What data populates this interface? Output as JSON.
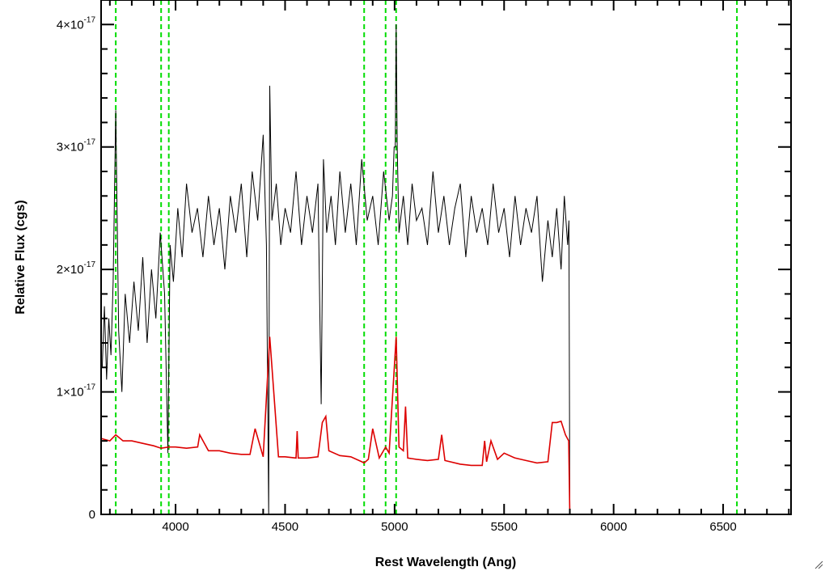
{
  "chart_data": {
    "type": "line",
    "xlabel": "Rest Wavelength (Ang)",
    "ylabel": "Relative Flux (cgs)",
    "xlim": [
      3660,
      6810
    ],
    "ylim": [
      0,
      4.2e-17
    ],
    "x_ticks": [
      {
        "value": 4000,
        "label": "4000"
      },
      {
        "value": 4500,
        "label": "4500"
      },
      {
        "value": 5000,
        "label": "5000"
      },
      {
        "value": 5500,
        "label": "5500"
      },
      {
        "value": 6000,
        "label": "6000"
      },
      {
        "value": 6500,
        "label": "6500"
      }
    ],
    "y_ticks": [
      {
        "value": 0,
        "label": "0"
      },
      {
        "value": 1e-17,
        "label": "1×10",
        "exp": "-17"
      },
      {
        "value": 2e-17,
        "label": "2×10",
        "exp": "-17"
      },
      {
        "value": 3e-17,
        "label": "3×10",
        "exp": "-17"
      },
      {
        "value": 4e-17,
        "label": "4×10",
        "exp": "-17"
      }
    ],
    "grid": false,
    "reference_lines": {
      "color": "#00dd00",
      "style": "dashed",
      "x": [
        3727,
        3934,
        3969,
        4861,
        4959,
        5007,
        6563
      ]
    },
    "series": [
      {
        "color": "#000000",
        "x": [
          3665,
          3675,
          3685,
          3695,
          3705,
          3715,
          3727,
          3740,
          3755,
          3770,
          3790,
          3810,
          3830,
          3850,
          3870,
          3890,
          3910,
          3930,
          3950,
          3965,
          3975,
          3990,
          4010,
          4030,
          4050,
          4075,
          4100,
          4125,
          4150,
          4175,
          4200,
          4225,
          4250,
          4275,
          4300,
          4325,
          4350,
          4375,
          4400,
          4415,
          4425,
          4430,
          4440,
          4460,
          4480,
          4500,
          4525,
          4550,
          4575,
          4600,
          4625,
          4650,
          4665,
          4675,
          4690,
          4710,
          4730,
          4750,
          4775,
          4800,
          4825,
          4850,
          4875,
          4900,
          4925,
          4950,
          4975,
          4990,
          4998,
          5003,
          5007,
          5012,
          5020,
          5040,
          5060,
          5080,
          5100,
          5125,
          5150,
          5175,
          5200,
          5225,
          5250,
          5275,
          5300,
          5325,
          5350,
          5375,
          5400,
          5425,
          5450,
          5475,
          5500,
          5525,
          5550,
          5575,
          5600,
          5625,
          5650,
          5675,
          5700,
          5720,
          5740,
          5760,
          5775,
          5790,
          5796,
          5800
        ],
        "y": [
          1.2e-17,
          1.7e-17,
          1.1e-17,
          1.6e-17,
          1.3e-17,
          1.9e-17,
          3.3e-17,
          1.5e-17,
          1e-17,
          1.8e-17,
          1.4e-17,
          1.9e-17,
          1.5e-17,
          2.1e-17,
          1.4e-17,
          2e-17,
          1.6e-17,
          2.3e-17,
          1.8e-17,
          5e-18,
          2.2e-17,
          1.9e-17,
          2.5e-17,
          2.1e-17,
          2.7e-17,
          2.3e-17,
          2.5e-17,
          2.1e-17,
          2.6e-17,
          2.2e-17,
          2.5e-17,
          2e-17,
          2.6e-17,
          2.3e-17,
          2.7e-17,
          2.1e-17,
          2.8e-17,
          2.4e-17,
          3.1e-17,
          2.2e-17,
          0.0,
          3.5e-17,
          2.4e-17,
          2.7e-17,
          2.2e-17,
          2.5e-17,
          2.3e-17,
          2.8e-17,
          2.2e-17,
          2.6e-17,
          2.3e-17,
          2.7e-17,
          9e-18,
          2.9e-17,
          2.3e-17,
          2.6e-17,
          2.2e-17,
          2.8e-17,
          2.3e-17,
          2.7e-17,
          2.2e-17,
          2.9e-17,
          2.4e-17,
          2.6e-17,
          2.2e-17,
          2.8e-17,
          2.4e-17,
          2.6e-17,
          3e-17,
          3e-17,
          4e-17,
          3e-17,
          2.3e-17,
          2.6e-17,
          2.2e-17,
          2.7e-17,
          2.4e-17,
          2.5e-17,
          2.2e-17,
          2.8e-17,
          2.3e-17,
          2.6e-17,
          2.2e-17,
          2.5e-17,
          2.7e-17,
          2.1e-17,
          2.6e-17,
          2.3e-17,
          2.5e-17,
          2.2e-17,
          2.7e-17,
          2.3e-17,
          2.5e-17,
          2.1e-17,
          2.6e-17,
          2.2e-17,
          2.5e-17,
          2.3e-17,
          2.6e-17,
          1.9e-17,
          2.4e-17,
          2.1e-17,
          2.5e-17,
          2e-17,
          2.6e-17,
          2.2e-17,
          2.4e-17,
          0.0
        ]
      },
      {
        "color": "#dd0000",
        "x": [
          3660,
          3700,
          3727,
          3760,
          3800,
          3850,
          3900,
          3934,
          3969,
          4000,
          4050,
          4101,
          4110,
          4150,
          4200,
          4250,
          4300,
          4340,
          4363,
          4400,
          4430,
          4470,
          4500,
          4550,
          4555,
          4560,
          4600,
          4650,
          4670,
          4686,
          4700,
          4750,
          4800,
          4850,
          4861,
          4880,
          4900,
          4930,
          4959,
          4975,
          5007,
          5020,
          5040,
          5050,
          5060,
          5100,
          5150,
          5200,
          5215,
          5230,
          5300,
          5350,
          5400,
          5411,
          5420,
          5440,
          5470,
          5500,
          5550,
          5600,
          5650,
          5700,
          5720,
          5740,
          5760,
          5780,
          5795,
          5800,
          5810,
          6000,
          6200,
          6400,
          6600,
          6810
        ],
        "y": [
          6.2e-18,
          6e-18,
          6.5e-18,
          6e-18,
          6e-18,
          5.8e-18,
          5.6e-18,
          5.4e-18,
          5.5e-18,
          5.5e-18,
          5.4e-18,
          5.5e-18,
          6.5e-18,
          5.2e-18,
          5.2e-18,
          5e-18,
          4.9e-18,
          4.9e-18,
          7e-18,
          4.7e-18,
          1.45e-17,
          4.7e-18,
          4.7e-18,
          4.6e-18,
          6.8e-18,
          4.6e-18,
          4.6e-18,
          4.7e-18,
          7.5e-18,
          8e-18,
          5.2e-18,
          4.8e-18,
          4.7e-18,
          4.3e-18,
          4.2e-18,
          4.5e-18,
          7e-18,
          4.6e-18,
          5.5e-18,
          5e-18,
          1.45e-17,
          5.5e-18,
          5.2e-18,
          8.8e-18,
          4.6e-18,
          4.5e-18,
          4.4e-18,
          4.5e-18,
          6.5e-18,
          4.4e-18,
          4.1e-18,
          4e-18,
          4e-18,
          6e-18,
          4.3e-18,
          6e-18,
          4.5e-18,
          5e-18,
          4.6e-18,
          4.4e-18,
          4.2e-18,
          4.3e-18,
          7.5e-18,
          7.5e-18,
          7.6e-18,
          6.5e-18,
          6e-18,
          0.0,
          0.0,
          0.0,
          0.0,
          0.0,
          0.0,
          0.0
        ]
      }
    ]
  }
}
